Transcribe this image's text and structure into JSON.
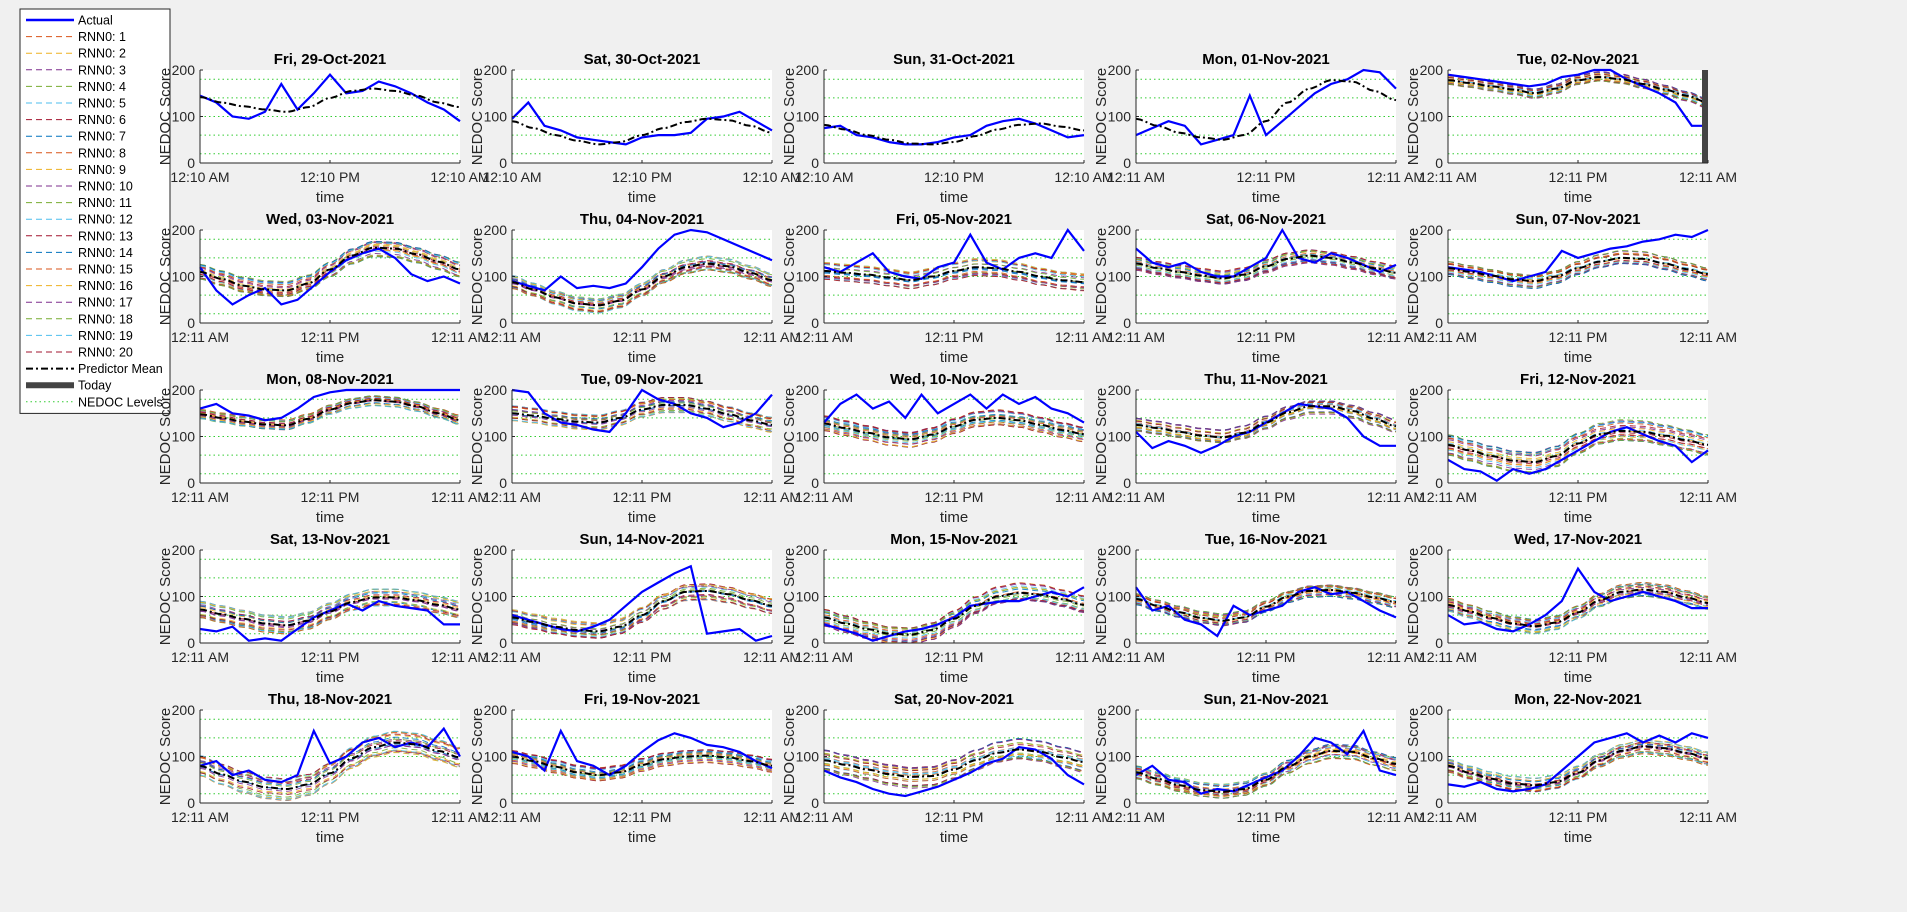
{
  "legend": {
    "items": [
      {
        "label": "Actual",
        "color": "#0000ff",
        "style": "solid",
        "width": 2.5
      },
      {
        "label": "RNN0: 1",
        "color": "#d95319",
        "style": "dash",
        "width": 1
      },
      {
        "label": "RNN0: 2",
        "color": "#edb120",
        "style": "dash",
        "width": 1
      },
      {
        "label": "RNN0: 3",
        "color": "#7e2f8e",
        "style": "dash",
        "width": 1
      },
      {
        "label": "RNN0: 4",
        "color": "#77ac30",
        "style": "dash",
        "width": 1
      },
      {
        "label": "RNN0: 5",
        "color": "#4dbeee",
        "style": "dash",
        "width": 1
      },
      {
        "label": "RNN0: 6",
        "color": "#a2142f",
        "style": "dash",
        "width": 1
      },
      {
        "label": "RNN0: 7",
        "color": "#0072bd",
        "style": "dash",
        "width": 1
      },
      {
        "label": "RNN0: 8",
        "color": "#d95319",
        "style": "dash",
        "width": 1
      },
      {
        "label": "RNN0: 9",
        "color": "#edb120",
        "style": "dash",
        "width": 1
      },
      {
        "label": "RNN0: 10",
        "color": "#7e2f8e",
        "style": "dash",
        "width": 1
      },
      {
        "label": "RNN0: 11",
        "color": "#77ac30",
        "style": "dash",
        "width": 1
      },
      {
        "label": "RNN0: 12",
        "color": "#4dbeee",
        "style": "dash",
        "width": 1
      },
      {
        "label": "RNN0: 13",
        "color": "#a2142f",
        "style": "dash",
        "width": 1
      },
      {
        "label": "RNN0: 14",
        "color": "#0072bd",
        "style": "dash",
        "width": 1
      },
      {
        "label": "RNN0: 15",
        "color": "#d95319",
        "style": "dash",
        "width": 1
      },
      {
        "label": "RNN0: 16",
        "color": "#edb120",
        "style": "dash",
        "width": 1
      },
      {
        "label": "RNN0: 17",
        "color": "#7e2f8e",
        "style": "dash",
        "width": 1
      },
      {
        "label": "RNN0: 18",
        "color": "#77ac30",
        "style": "dash",
        "width": 1
      },
      {
        "label": "RNN0: 19",
        "color": "#4dbeee",
        "style": "dash",
        "width": 1
      },
      {
        "label": "RNN0: 20",
        "color": "#a2142f",
        "style": "dash",
        "width": 1
      },
      {
        "label": "Predictor Mean",
        "color": "#000000",
        "style": "dashdot",
        "width": 2
      },
      {
        "label": "Today",
        "color": "#444444",
        "style": "bar",
        "width": 6
      },
      {
        "label": "NEDOC Levels",
        "color": "#33cc33",
        "style": "dot",
        "width": 1
      }
    ]
  },
  "chart_data": {
    "type": "line",
    "ylabel": "NEDOC Score",
    "xlabel": "time",
    "ylim": [
      0,
      200
    ],
    "yticks": [
      0,
      100,
      200
    ],
    "nedoc_levels": [
      20,
      60,
      100,
      140,
      180
    ],
    "legend_position": "left-outside",
    "today_marker": "Tue, 02-Nov-2021",
    "panels": [
      {
        "title": "Fri, 29-Oct-2021",
        "xticks": [
          "12:10 AM",
          "12:10 PM",
          "12:10 AM"
        ],
        "actual": [
          145,
          130,
          100,
          95,
          110,
          170,
          115,
          150,
          190,
          150,
          155,
          175,
          165,
          150,
          130,
          115,
          90
        ],
        "mean": [
          142,
          130,
          122,
          115,
          110,
          120,
          140,
          155,
          160,
          155,
          145,
          130,
          120
        ],
        "spread": 0
      },
      {
        "title": "Sat, 30-Oct-2021",
        "xticks": [
          "12:10 AM",
          "12:10 PM",
          "12:10 AM"
        ],
        "actual": [
          95,
          130,
          80,
          70,
          55,
          50,
          45,
          40,
          55,
          60,
          60,
          65,
          95,
          100,
          110,
          90,
          70
        ],
        "mean": [
          90,
          75,
          60,
          48,
          40,
          45,
          60,
          75,
          88,
          95,
          92,
          80,
          65
        ],
        "spread": 0
      },
      {
        "title": "Sun, 31-Oct-2021",
        "xticks": [
          "12:10 AM",
          "12:10 PM",
          "12:10 AM"
        ],
        "actual": [
          75,
          80,
          60,
          55,
          45,
          40,
          40,
          45,
          55,
          60,
          80,
          90,
          95,
          85,
          70,
          55,
          60
        ],
        "mean": [
          82,
          72,
          60,
          50,
          42,
          40,
          45,
          58,
          72,
          82,
          85,
          78,
          70
        ],
        "spread": 0
      },
      {
        "title": "Mon, 01-Nov-2021",
        "xticks": [
          "12:11 AM",
          "12:11 PM",
          "12:11 AM"
        ],
        "actual": [
          60,
          75,
          90,
          80,
          40,
          50,
          60,
          145,
          60,
          90,
          120,
          150,
          170,
          180,
          200,
          195,
          160
        ],
        "mean": [
          95,
          80,
          65,
          55,
          50,
          60,
          90,
          130,
          160,
          178,
          175,
          155,
          135
        ],
        "spread": 0
      },
      {
        "title": "Tue, 02-Nov-2021",
        "xticks": [
          "12:11 AM",
          "12:11 PM",
          "12:11 AM"
        ],
        "actual": [
          190,
          185,
          180,
          175,
          170,
          165,
          170,
          185,
          190,
          200,
          200,
          180,
          165,
          150,
          130,
          80,
          80
        ],
        "mean": [
          178,
          172,
          165,
          158,
          150,
          160,
          178,
          185,
          180,
          170,
          158,
          145,
          130
        ],
        "spread": 10
      },
      {
        "title": "Wed, 03-Nov-2021",
        "xticks": [
          "12:11 AM",
          "12:11 PM",
          "12:11 AM"
        ],
        "actual": [
          120,
          70,
          40,
          60,
          75,
          40,
          50,
          80,
          110,
          135,
          150,
          160,
          140,
          105,
          90,
          100,
          85
        ],
        "mean": [
          110,
          95,
          80,
          72,
          70,
          85,
          115,
          145,
          162,
          160,
          148,
          132,
          115
        ],
        "spread": 16
      },
      {
        "title": "Thu, 04-Nov-2021",
        "xticks": [
          "12:11 AM",
          "12:11 PM",
          "12:11 AM"
        ],
        "actual": [
          90,
          80,
          70,
          100,
          75,
          80,
          75,
          85,
          120,
          160,
          190,
          200,
          195,
          180,
          165,
          150,
          135
        ],
        "mean": [
          88,
          72,
          55,
          42,
          38,
          48,
          72,
          100,
          120,
          128,
          122,
          108,
          92
        ],
        "spread": 14
      },
      {
        "title": "Fri, 05-Nov-2021",
        "xticks": [
          "12:11 AM",
          "12:11 PM",
          "12:11 AM"
        ],
        "actual": [
          120,
          110,
          130,
          150,
          110,
          100,
          95,
          120,
          130,
          190,
          130,
          115,
          140,
          150,
          140,
          200,
          155
        ],
        "mean": [
          112,
          108,
          104,
          98,
          92,
          100,
          112,
          120,
          118,
          110,
          100,
          92,
          88
        ],
        "spread": 18
      },
      {
        "title": "Sat, 06-Nov-2021",
        "xticks": [
          "12:11 AM",
          "12:11 PM",
          "12:11 AM"
        ],
        "actual": [
          160,
          130,
          120,
          130,
          110,
          100,
          100,
          120,
          140,
          200,
          140,
          130,
          150,
          140,
          125,
          110,
          125
        ],
        "mean": [
          128,
          118,
          110,
          102,
          96,
          104,
          122,
          138,
          145,
          140,
          130,
          118,
          108
        ],
        "spread": 14
      },
      {
        "title": "Sun, 07-Nov-2021",
        "xticks": [
          "12:11 AM",
          "12:11 PM",
          "12:11 AM"
        ],
        "actual": [
          120,
          115,
          110,
          100,
          90,
          100,
          110,
          155,
          140,
          150,
          160,
          165,
          175,
          180,
          190,
          185,
          200
        ],
        "mean": [
          118,
          110,
          102,
          94,
          90,
          100,
          118,
          132,
          140,
          138,
          128,
          116,
          105
        ],
        "spread": 14
      },
      {
        "title": "Mon, 08-Nov-2021",
        "xticks": [
          "12:11 AM",
          "12:11 PM",
          "12:11 AM"
        ],
        "actual": [
          160,
          170,
          150,
          145,
          135,
          140,
          160,
          185,
          195,
          200,
          200,
          200,
          200,
          200,
          200,
          200,
          200
        ],
        "mean": [
          148,
          140,
          132,
          126,
          124,
          138,
          158,
          172,
          178,
          175,
          165,
          150,
          135
        ],
        "spread": 10
      },
      {
        "title": "Tue, 09-Nov-2021",
        "xticks": [
          "12:11 AM",
          "12:11 PM",
          "12:11 AM"
        ],
        "actual": [
          200,
          195,
          150,
          130,
          125,
          115,
          110,
          150,
          200,
          180,
          170,
          150,
          140,
          120,
          130,
          150,
          190
        ],
        "mean": [
          150,
          145,
          138,
          132,
          130,
          140,
          158,
          168,
          168,
          160,
          148,
          135,
          125
        ],
        "spread": 16
      },
      {
        "title": "Wed, 10-Nov-2021",
        "xticks": [
          "12:11 AM",
          "12:11 PM",
          "12:11 AM"
        ],
        "actual": [
          130,
          170,
          190,
          160,
          175,
          140,
          190,
          150,
          170,
          190,
          160,
          190,
          170,
          185,
          160,
          150,
          130
        ],
        "mean": [
          128,
          118,
          108,
          98,
          94,
          104,
          122,
          136,
          140,
          135,
          125,
          114,
          105
        ],
        "spread": 16
      },
      {
        "title": "Thu, 11-Nov-2021",
        "xticks": [
          "12:11 AM",
          "12:11 PM",
          "12:11 AM"
        ],
        "actual": [
          110,
          75,
          90,
          80,
          65,
          80,
          100,
          110,
          130,
          150,
          170,
          165,
          160,
          140,
          100,
          80,
          80
        ],
        "mean": [
          125,
          118,
          110,
          102,
          98,
          108,
          130,
          152,
          165,
          165,
          155,
          138,
          122
        ],
        "spread": 14
      },
      {
        "title": "Fri, 12-Nov-2021",
        "xticks": [
          "12:11 AM",
          "12:11 PM",
          "12:11 AM"
        ],
        "actual": [
          50,
          30,
          25,
          5,
          30,
          20,
          30,
          50,
          70,
          90,
          110,
          120,
          105,
          90,
          80,
          45,
          70
        ],
        "mean": [
          82,
          70,
          58,
          48,
          45,
          58,
          85,
          105,
          112,
          110,
          102,
          92,
          82
        ],
        "spread": 22
      },
      {
        "title": "Sat, 13-Nov-2021",
        "xticks": [
          "12:11 AM",
          "12:11 PM",
          "12:11 AM"
        ],
        "actual": [
          30,
          25,
          35,
          5,
          10,
          5,
          30,
          55,
          70,
          85,
          70,
          90,
          80,
          75,
          70,
          40,
          40
        ],
        "mean": [
          72,
          62,
          52,
          42,
          38,
          48,
          68,
          88,
          98,
          98,
          92,
          82,
          72
        ],
        "spread": 18
      },
      {
        "title": "Sun, 14-Nov-2021",
        "xticks": [
          "12:11 AM",
          "12:11 PM",
          "12:11 AM"
        ],
        "actual": [
          60,
          50,
          40,
          30,
          25,
          35,
          50,
          80,
          110,
          130,
          150,
          165,
          20,
          25,
          30,
          5,
          15
        ],
        "mean": [
          55,
          45,
          35,
          28,
          25,
          35,
          60,
          90,
          110,
          112,
          105,
          92,
          80
        ],
        "spread": 16
      },
      {
        "title": "Mon, 15-Nov-2021",
        "xticks": [
          "12:11 AM",
          "12:11 PM",
          "12:11 AM"
        ],
        "actual": [
          40,
          30,
          20,
          5,
          15,
          25,
          30,
          40,
          55,
          80,
          85,
          90,
          90,
          100,
          110,
          100,
          120
        ],
        "mean": [
          55,
          42,
          30,
          20,
          18,
          28,
          52,
          80,
          100,
          108,
          104,
          94,
          82
        ],
        "spread": 18
      },
      {
        "title": "Tue, 16-Nov-2021",
        "xticks": [
          "12:11 AM",
          "12:11 PM",
          "12:11 AM"
        ],
        "actual": [
          120,
          70,
          80,
          50,
          40,
          15,
          80,
          60,
          70,
          80,
          110,
          120,
          105,
          110,
          90,
          70,
          55
        ],
        "mean": [
          95,
          80,
          66,
          54,
          48,
          55,
          78,
          100,
          112,
          114,
          108,
          98,
          88
        ],
        "spread": 12
      },
      {
        "title": "Wed, 17-Nov-2021",
        "xticks": [
          "12:11 AM",
          "12:11 PM",
          "12:11 AM"
        ],
        "actual": [
          60,
          40,
          45,
          30,
          25,
          40,
          60,
          90,
          160,
          110,
          90,
          100,
          110,
          100,
          90,
          75,
          75
        ],
        "mean": [
          82,
          68,
          54,
          42,
          36,
          44,
          66,
          92,
          110,
          115,
          110,
          98,
          86
        ],
        "spread": 14
      },
      {
        "title": "Thu, 18-Nov-2021",
        "xticks": [
          "12:11 AM",
          "12:11 PM",
          "12:11 AM"
        ],
        "actual": [
          80,
          90,
          60,
          70,
          50,
          45,
          60,
          155,
          85,
          100,
          130,
          140,
          120,
          130,
          120,
          160,
          100
        ],
        "mean": [
          80,
          62,
          46,
          34,
          30,
          40,
          64,
          96,
          120,
          130,
          126,
          112,
          98
        ],
        "spread": 22
      },
      {
        "title": "Fri, 19-Nov-2021",
        "xticks": [
          "12:11 AM",
          "12:11 PM",
          "12:11 AM"
        ],
        "actual": [
          110,
          100,
          70,
          155,
          90,
          80,
          60,
          80,
          110,
          135,
          150,
          140,
          125,
          120,
          110,
          90,
          75
        ],
        "mean": [
          100,
          90,
          78,
          66,
          60,
          66,
          82,
          94,
          100,
          102,
          98,
          90,
          80
        ],
        "spread": 14
      },
      {
        "title": "Sat, 20-Nov-2021",
        "xticks": [
          "12:11 AM",
          "12:11 PM",
          "12:11 AM"
        ],
        "actual": [
          70,
          55,
          45,
          30,
          20,
          15,
          25,
          35,
          50,
          65,
          85,
          95,
          120,
          115,
          95,
          60,
          40
        ],
        "mean": [
          92,
          82,
          72,
          62,
          56,
          58,
          72,
          92,
          108,
          115,
          110,
          98,
          88
        ],
        "spread": 22
      },
      {
        "title": "Sun, 21-Nov-2021",
        "xticks": [
          "12:11 AM",
          "12:11 PM",
          "12:11 AM"
        ],
        "actual": [
          60,
          80,
          50,
          45,
          20,
          30,
          25,
          40,
          55,
          70,
          100,
          140,
          130,
          105,
          155,
          70,
          60
        ],
        "mean": [
          66,
          52,
          38,
          28,
          24,
          30,
          50,
          78,
          100,
          112,
          110,
          96,
          84
        ],
        "spread": 14
      },
      {
        "title": "Mon, 22-Nov-2021",
        "xticks": [
          "12:11 AM",
          "12:11 PM",
          "12:11 AM"
        ],
        "actual": [
          40,
          35,
          45,
          30,
          25,
          30,
          40,
          70,
          100,
          130,
          140,
          150,
          130,
          145,
          130,
          150,
          140
        ],
        "mean": [
          80,
          65,
          52,
          42,
          38,
          45,
          65,
          92,
          112,
          122,
          118,
          108,
          96
        ],
        "spread": 14
      }
    ]
  }
}
